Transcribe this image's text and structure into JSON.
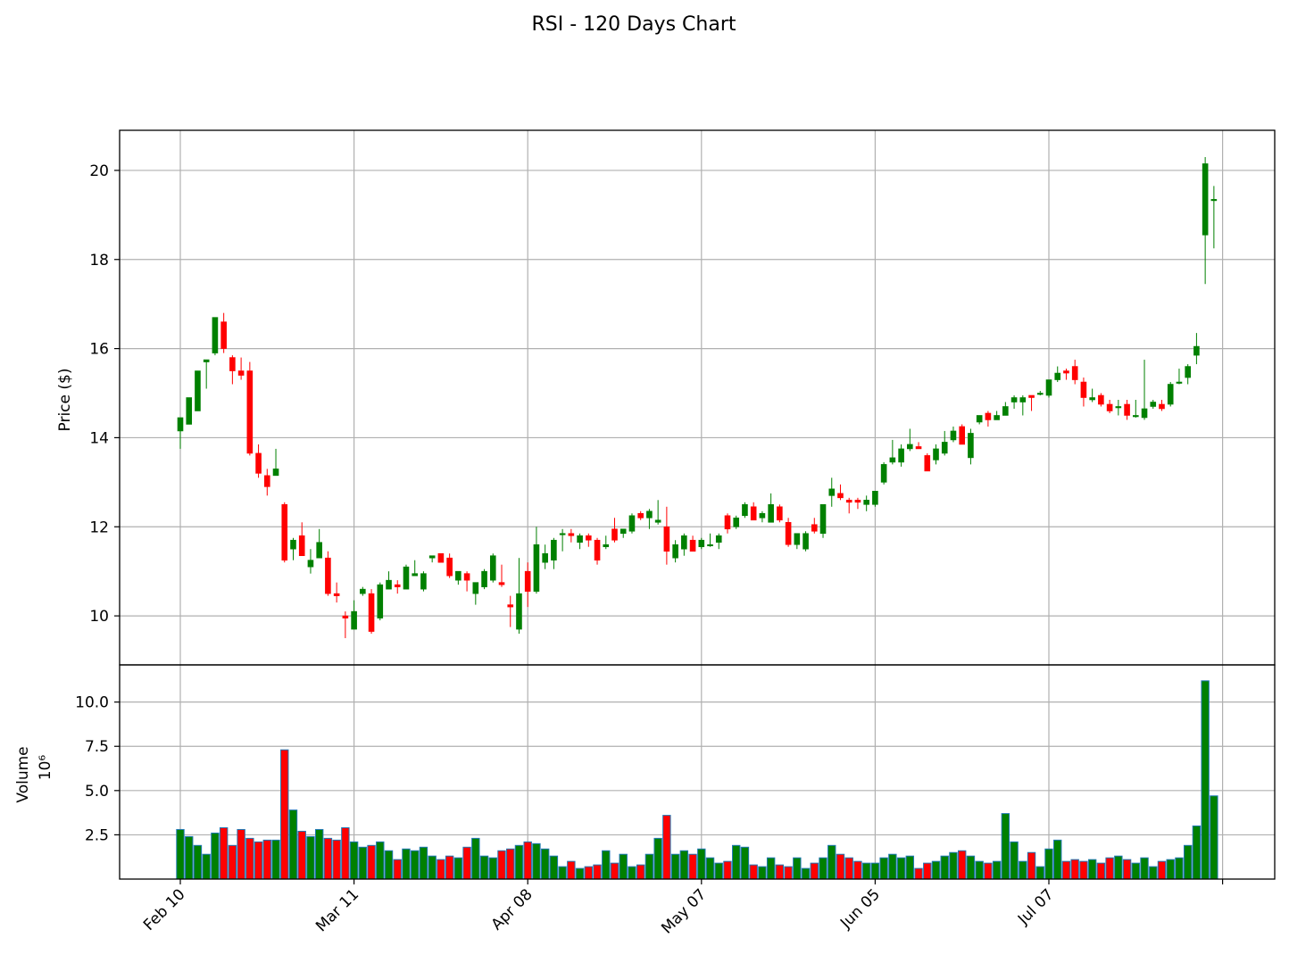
{
  "chart_data": {
    "type": "candlestick",
    "title": "RSI - 120 Days Chart",
    "price_panel": {
      "ylabel": "Price ($)",
      "ylim": [
        8.9,
        20.9
      ],
      "yticks": [
        10,
        12,
        14,
        16,
        18,
        20
      ],
      "grid": true
    },
    "volume_panel": {
      "ylabel": "Volume",
      "yscale_label": "10⁶",
      "ylim": [
        0,
        12.1
      ],
      "yticks": [
        2.5,
        5.0,
        7.5,
        10.0
      ],
      "ytick_labels": [
        "2.5",
        "5.0",
        "7.5",
        "10.0"
      ],
      "grid": true
    },
    "x_ticks": [
      {
        "label": "Feb 10",
        "index": 0
      },
      {
        "label": "Mar 11",
        "index": 20
      },
      {
        "label": "Apr 08",
        "index": 40
      },
      {
        "label": "May 07",
        "index": 60
      },
      {
        "label": "Jun 05",
        "index": 80
      },
      {
        "label": "Jul 07",
        "index": 100
      },
      {
        "label": "",
        "index": 120
      }
    ],
    "colors": {
      "up": "#008000",
      "down": "#ff0000",
      "volume_edge": "#1f77b4",
      "grid": "#b0b0b0"
    },
    "candles": [
      [
        14.15,
        14.45,
        13.75,
        14.45,
        2.8
      ],
      [
        14.3,
        14.9,
        14.3,
        14.9,
        2.4
      ],
      [
        14.6,
        15.5,
        14.6,
        15.5,
        1.9
      ],
      [
        15.7,
        15.75,
        15.1,
        15.75,
        1.4
      ],
      [
        15.9,
        16.7,
        15.85,
        16.7,
        2.6
      ],
      [
        16.6,
        16.8,
        15.9,
        16.0,
        2.9
      ],
      [
        15.8,
        15.85,
        15.2,
        15.5,
        1.9
      ],
      [
        15.5,
        15.8,
        15.3,
        15.4,
        2.8
      ],
      [
        15.5,
        15.7,
        13.6,
        13.65,
        2.3
      ],
      [
        13.65,
        13.85,
        13.1,
        13.2,
        2.1
      ],
      [
        13.15,
        13.3,
        12.7,
        12.9,
        2.2
      ],
      [
        13.15,
        13.75,
        13.15,
        13.3,
        2.2
      ],
      [
        12.5,
        12.55,
        11.2,
        11.25,
        7.3
      ],
      [
        11.5,
        11.75,
        11.25,
        11.7,
        3.9
      ],
      [
        11.8,
        12.1,
        11.4,
        11.35,
        2.7
      ],
      [
        11.1,
        11.5,
        10.95,
        11.25,
        2.4
      ],
      [
        11.3,
        11.95,
        11.3,
        11.65,
        2.8
      ],
      [
        11.3,
        11.45,
        10.45,
        10.5,
        2.3
      ],
      [
        10.5,
        10.75,
        10.3,
        10.45,
        2.2
      ],
      [
        10.0,
        10.1,
        9.5,
        9.95,
        2.9
      ],
      [
        9.7,
        10.35,
        9.7,
        10.1,
        2.1
      ],
      [
        10.5,
        10.65,
        10.45,
        10.6,
        1.8
      ],
      [
        10.5,
        10.6,
        9.6,
        9.65,
        1.9
      ],
      [
        9.95,
        10.75,
        9.9,
        10.7,
        2.1
      ],
      [
        10.6,
        11.0,
        10.6,
        10.8,
        1.6
      ],
      [
        10.7,
        10.8,
        10.5,
        10.65,
        1.1
      ],
      [
        10.6,
        11.15,
        10.6,
        11.1,
        1.7
      ],
      [
        10.9,
        11.25,
        10.9,
        10.95,
        1.6
      ],
      [
        10.6,
        11.0,
        10.55,
        10.95,
        1.8
      ],
      [
        11.3,
        11.35,
        11.2,
        11.35,
        1.3
      ],
      [
        11.4,
        11.4,
        11.2,
        11.2,
        1.1
      ],
      [
        11.3,
        11.4,
        10.85,
        10.9,
        1.3
      ],
      [
        10.8,
        11.0,
        10.7,
        11.0,
        1.2
      ],
      [
        10.95,
        11.0,
        10.55,
        10.8,
        1.8
      ],
      [
        10.5,
        10.7,
        10.25,
        10.75,
        2.3
      ],
      [
        10.65,
        11.05,
        10.6,
        11.0,
        1.3
      ],
      [
        10.8,
        11.4,
        10.75,
        11.35,
        1.2
      ],
      [
        10.75,
        11.15,
        10.65,
        10.7,
        1.6
      ],
      [
        10.25,
        10.45,
        9.75,
        10.2,
        1.7
      ],
      [
        9.7,
        11.3,
        9.6,
        10.5,
        1.9
      ],
      [
        11.0,
        11.2,
        10.2,
        10.55,
        2.1
      ],
      [
        10.55,
        12.0,
        10.5,
        11.6,
        2.0
      ],
      [
        11.2,
        11.6,
        11.05,
        11.4,
        1.7
      ],
      [
        11.25,
        11.75,
        11.05,
        11.7,
        1.3
      ],
      [
        11.85,
        11.95,
        11.45,
        11.85,
        0.7
      ],
      [
        11.85,
        11.95,
        11.65,
        11.8,
        1.0
      ],
      [
        11.65,
        11.85,
        11.5,
        11.8,
        0.6
      ],
      [
        11.8,
        11.85,
        11.55,
        11.7,
        0.7
      ],
      [
        11.7,
        11.75,
        11.15,
        11.25,
        0.8
      ],
      [
        11.55,
        11.8,
        11.5,
        11.6,
        1.6
      ],
      [
        11.95,
        12.2,
        11.65,
        11.7,
        0.9
      ],
      [
        11.85,
        11.95,
        11.75,
        11.95,
        1.4
      ],
      [
        11.9,
        12.3,
        11.85,
        12.25,
        0.7
      ],
      [
        12.3,
        12.35,
        12.15,
        12.2,
        0.8
      ],
      [
        12.2,
        12.4,
        11.95,
        12.35,
        1.4
      ],
      [
        12.1,
        12.6,
        12.05,
        12.15,
        2.3
      ],
      [
        12.0,
        12.45,
        11.15,
        11.45,
        3.6
      ],
      [
        11.3,
        11.7,
        11.2,
        11.6,
        1.4
      ],
      [
        11.5,
        11.85,
        11.35,
        11.8,
        1.6
      ],
      [
        11.7,
        11.8,
        11.45,
        11.45,
        1.4
      ],
      [
        11.55,
        11.75,
        11.5,
        11.7,
        1.7
      ],
      [
        11.6,
        11.85,
        11.55,
        11.6,
        1.2
      ],
      [
        11.65,
        11.85,
        11.5,
        11.8,
        0.9
      ],
      [
        12.25,
        12.3,
        11.85,
        11.95,
        1.0
      ],
      [
        12.0,
        12.25,
        11.95,
        12.2,
        1.9
      ],
      [
        12.25,
        12.55,
        12.2,
        12.5,
        1.8
      ],
      [
        12.45,
        12.55,
        12.15,
        12.15,
        0.8
      ],
      [
        12.2,
        12.35,
        12.1,
        12.3,
        0.7
      ],
      [
        12.1,
        12.75,
        12.1,
        12.5,
        1.2
      ],
      [
        12.45,
        12.5,
        12.1,
        12.15,
        0.8
      ],
      [
        12.1,
        12.2,
        11.55,
        11.6,
        0.7
      ],
      [
        11.6,
        11.85,
        11.5,
        11.85,
        1.2
      ],
      [
        11.5,
        11.9,
        11.45,
        11.85,
        0.6
      ],
      [
        12.05,
        12.2,
        11.85,
        11.9,
        0.9
      ],
      [
        11.85,
        12.5,
        11.75,
        12.5,
        1.2
      ],
      [
        12.7,
        13.1,
        12.45,
        12.85,
        1.9
      ],
      [
        12.75,
        12.95,
        12.6,
        12.65,
        1.4
      ],
      [
        12.6,
        12.65,
        12.3,
        12.55,
        1.2
      ],
      [
        12.6,
        12.65,
        12.4,
        12.55,
        1.0
      ],
      [
        12.5,
        12.7,
        12.35,
        12.6,
        0.9
      ],
      [
        12.5,
        12.8,
        12.45,
        12.8,
        0.9
      ],
      [
        13.0,
        13.45,
        12.95,
        13.4,
        1.2
      ],
      [
        13.45,
        13.95,
        13.4,
        13.55,
        1.4
      ],
      [
        13.45,
        13.85,
        13.35,
        13.75,
        1.2
      ],
      [
        13.75,
        14.2,
        13.7,
        13.85,
        1.3
      ],
      [
        13.8,
        13.9,
        13.75,
        13.75,
        0.6
      ],
      [
        13.6,
        13.65,
        13.25,
        13.25,
        0.9
      ],
      [
        13.5,
        13.85,
        13.4,
        13.75,
        1.0
      ],
      [
        13.65,
        14.15,
        13.6,
        13.9,
        1.3
      ],
      [
        13.95,
        14.25,
        13.9,
        14.15,
        1.5
      ],
      [
        14.25,
        14.3,
        13.85,
        13.85,
        1.6
      ],
      [
        13.55,
        14.2,
        13.4,
        14.1,
        1.3
      ],
      [
        14.35,
        14.5,
        14.3,
        14.5,
        1.0
      ],
      [
        14.55,
        14.6,
        14.25,
        14.4,
        0.9
      ],
      [
        14.4,
        14.6,
        14.4,
        14.5,
        1.0
      ],
      [
        14.5,
        14.8,
        14.5,
        14.7,
        3.7
      ],
      [
        14.8,
        14.95,
        14.65,
        14.9,
        2.1
      ],
      [
        14.8,
        14.95,
        14.5,
        14.9,
        1.0
      ],
      [
        14.95,
        14.95,
        14.6,
        14.9,
        1.5
      ],
      [
        15.0,
        15.05,
        14.95,
        15.0,
        0.7
      ],
      [
        14.95,
        15.3,
        14.9,
        15.3,
        1.7
      ],
      [
        15.3,
        15.6,
        15.25,
        15.45,
        2.2
      ],
      [
        15.5,
        15.55,
        15.3,
        15.45,
        1.0
      ],
      [
        15.6,
        15.75,
        15.2,
        15.3,
        1.1
      ],
      [
        15.25,
        15.35,
        14.7,
        14.9,
        1.0
      ],
      [
        14.85,
        15.1,
        14.8,
        14.9,
        1.1
      ],
      [
        14.95,
        15.0,
        14.7,
        14.75,
        0.9
      ],
      [
        14.75,
        14.85,
        14.55,
        14.6,
        1.2
      ],
      [
        14.7,
        14.85,
        14.5,
        14.7,
        1.3
      ],
      [
        14.75,
        14.85,
        14.4,
        14.5,
        1.1
      ],
      [
        14.5,
        14.85,
        14.45,
        14.5,
        0.9
      ],
      [
        14.45,
        15.75,
        14.4,
        14.65,
        1.2
      ],
      [
        14.7,
        14.85,
        14.65,
        14.8,
        0.7
      ],
      [
        14.75,
        14.85,
        14.6,
        14.65,
        1.0
      ],
      [
        14.75,
        15.25,
        14.7,
        15.2,
        1.1
      ],
      [
        15.25,
        15.55,
        15.2,
        15.25,
        1.2
      ],
      [
        15.35,
        15.65,
        15.2,
        15.6,
        1.9
      ],
      [
        15.85,
        16.35,
        15.65,
        16.05,
        3.0
      ],
      [
        18.55,
        20.3,
        17.45,
        20.15,
        11.2
      ],
      [
        19.35,
        19.65,
        18.25,
        19.35,
        4.7
      ]
    ]
  }
}
